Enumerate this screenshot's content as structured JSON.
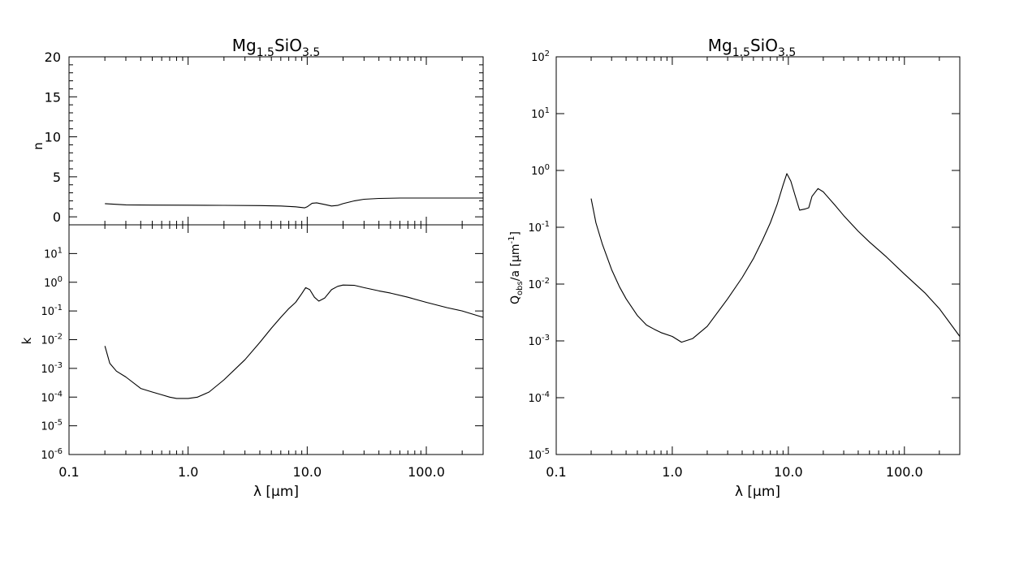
{
  "chart_data": [
    {
      "type": "line",
      "title_main": "Mg",
      "title_sub1": "1.5",
      "title_mid": "SiO",
      "title_sub2": "3.5",
      "xlabel": "λ [μm]",
      "xscale": "log",
      "xlim": [
        0.1,
        300
      ],
      "x_ticklabels": [
        "0.1",
        "1.0",
        "10.0",
        "100.0"
      ],
      "panels": [
        {
          "name": "n",
          "ylabel": "n",
          "yscale": "linear",
          "ylim": [
            -1,
            20
          ],
          "y_ticklabels": [
            "0",
            "5",
            "10",
            "15",
            "20"
          ],
          "series": [
            {
              "x": [
                0.2,
                0.3,
                0.5,
                1.0,
                2.0,
                4.0,
                6.0,
                8.0,
                9.5,
                10.0,
                11.0,
                12.0,
                14.0,
                16.0,
                18.0,
                20.0,
                25.0,
                30.0,
                40.0,
                60.0,
                100.0,
                300.0
              ],
              "y": [
                1.65,
                1.5,
                1.47,
                1.45,
                1.43,
                1.4,
                1.35,
                1.25,
                1.12,
                1.25,
                1.7,
                1.75,
                1.55,
                1.35,
                1.42,
                1.65,
                2.0,
                2.2,
                2.3,
                2.35,
                2.35,
                2.35
              ]
            }
          ]
        },
        {
          "name": "k",
          "ylabel": "k",
          "yscale": "log",
          "ylim": [
            1e-06,
            100
          ],
          "y_ticklabels": [
            {
              "base": "10",
              "exp": "1"
            },
            {
              "base": "10",
              "exp": "0"
            },
            {
              "base": "10",
              "exp": "-1"
            },
            {
              "base": "10",
              "exp": "-2"
            },
            {
              "base": "10",
              "exp": "-3"
            },
            {
              "base": "10",
              "exp": "-4"
            },
            {
              "base": "10",
              "exp": "-5"
            },
            {
              "base": "10",
              "exp": "-6"
            }
          ],
          "series": [
            {
              "x": [
                0.2,
                0.22,
                0.25,
                0.3,
                0.4,
                0.5,
                0.6,
                0.7,
                0.8,
                1.0,
                1.2,
                1.5,
                2.0,
                3.0,
                4.0,
                5.0,
                6.0,
                7.0,
                8.0,
                9.0,
                9.7,
                10.5,
                11.5,
                12.5,
                14.0,
                16.0,
                18.0,
                20.0,
                25.0,
                30.0,
                40.0,
                50.0,
                70.0,
                100.0,
                150.0,
                200.0,
                300.0
              ],
              "y": [
                0.006,
                0.0015,
                0.0008,
                0.0005,
                0.0002,
                0.00015,
                0.00012,
                0.0001,
                9e-05,
                9e-05,
                0.0001,
                0.00015,
                0.0004,
                0.002,
                0.008,
                0.025,
                0.06,
                0.12,
                0.2,
                0.4,
                0.65,
                0.55,
                0.3,
                0.22,
                0.28,
                0.55,
                0.72,
                0.8,
                0.78,
                0.65,
                0.5,
                0.42,
                0.3,
                0.2,
                0.13,
                0.1,
                0.06
              ]
            }
          ]
        }
      ]
    },
    {
      "type": "line",
      "title_main": "Mg",
      "title_sub1": "1.5",
      "title_mid": "SiO",
      "title_sub2": "3.5",
      "xlabel": "λ [μm]",
      "ylabel_main": "Q",
      "ylabel_sub": "obs",
      "ylabel_mid": "/a [μm",
      "ylabel_sup": "-1",
      "ylabel_end": "]",
      "xscale": "log",
      "yscale": "log",
      "xlim": [
        0.1,
        300
      ],
      "ylim": [
        1e-05,
        100
      ],
      "x_ticklabels": [
        "0.1",
        "1.0",
        "10.0",
        "100.0"
      ],
      "y_ticklabels": [
        {
          "base": "10",
          "exp": "2"
        },
        {
          "base": "10",
          "exp": "1"
        },
        {
          "base": "10",
          "exp": "0"
        },
        {
          "base": "10",
          "exp": "-1"
        },
        {
          "base": "10",
          "exp": "-2"
        },
        {
          "base": "10",
          "exp": "-3"
        },
        {
          "base": "10",
          "exp": "-4"
        },
        {
          "base": "10",
          "exp": "-5"
        }
      ],
      "series": [
        {
          "x": [
            0.2,
            0.22,
            0.25,
            0.3,
            0.35,
            0.4,
            0.5,
            0.6,
            0.7,
            0.8,
            1.0,
            1.2,
            1.5,
            2.0,
            3.0,
            4.0,
            5.0,
            6.0,
            7.0,
            8.0,
            9.0,
            9.7,
            10.5,
            11.5,
            12.5,
            14.0,
            15.0,
            16.0,
            18.0,
            20.0,
            25.0,
            30.0,
            40.0,
            50.0,
            70.0,
            100.0,
            150.0,
            200.0,
            300.0
          ],
          "y": [
            0.32,
            0.12,
            0.05,
            0.018,
            0.009,
            0.0055,
            0.0028,
            0.0019,
            0.0016,
            0.0014,
            0.0012,
            0.00095,
            0.0011,
            0.0018,
            0.0055,
            0.013,
            0.028,
            0.06,
            0.12,
            0.25,
            0.55,
            0.88,
            0.65,
            0.35,
            0.2,
            0.21,
            0.22,
            0.35,
            0.48,
            0.42,
            0.25,
            0.16,
            0.085,
            0.055,
            0.03,
            0.015,
            0.007,
            0.0037,
            0.0012
          ]
        }
      ]
    }
  ]
}
